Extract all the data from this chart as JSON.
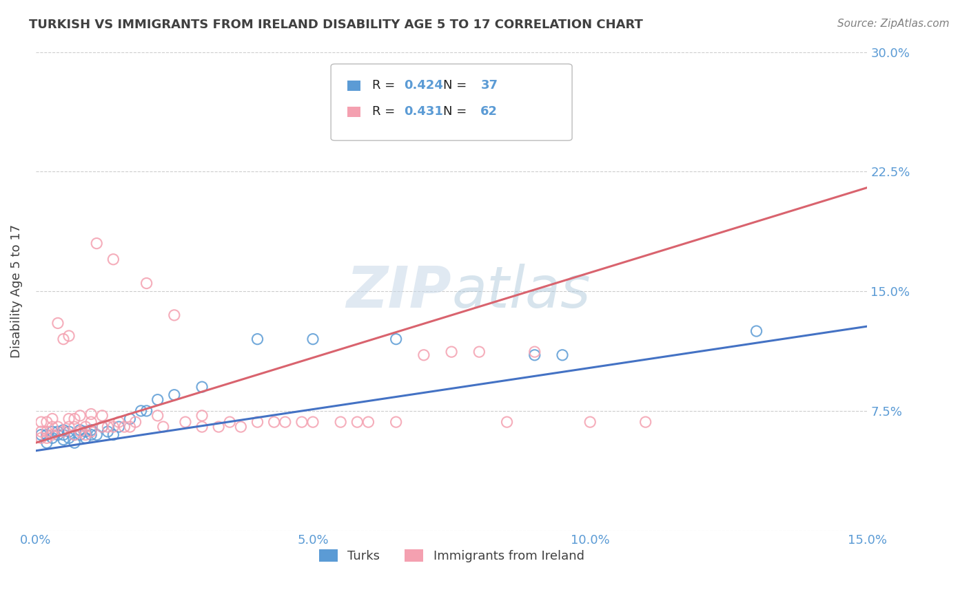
{
  "title": "TURKISH VS IMMIGRANTS FROM IRELAND DISABILITY AGE 5 TO 17 CORRELATION CHART",
  "source": "Source: ZipAtlas.com",
  "ylabel": "Disability Age 5 to 17",
  "x_min": 0.0,
  "x_max": 0.15,
  "y_min": 0.0,
  "y_max": 0.3,
  "x_ticks": [
    0.0,
    0.05,
    0.1,
    0.15
  ],
  "x_tick_labels": [
    "0.0%",
    "5.0%",
    "10.0%",
    "15.0%"
  ],
  "y_ticks": [
    0.0,
    0.075,
    0.15,
    0.225,
    0.3
  ],
  "y_tick_labels": [
    "",
    "7.5%",
    "15.0%",
    "22.5%",
    "30.0%"
  ],
  "blue_color": "#5b9bd5",
  "pink_color": "#f4a0b0",
  "blue_line_color": "#4472c4",
  "pink_line_color": "#d9636e",
  "R_blue": 0.424,
  "N_blue": 37,
  "R_pink": 0.431,
  "N_pink": 62,
  "legend_label_blue": "Turks",
  "legend_label_pink": "Immigrants from Ireland",
  "watermark_zip": "ZIP",
  "watermark_atlas": "atlas",
  "blue_trend_x": [
    0.0,
    0.15
  ],
  "blue_trend_y": [
    0.05,
    0.128
  ],
  "pink_trend_x": [
    0.0,
    0.15
  ],
  "pink_trend_y": [
    0.055,
    0.215
  ],
  "grid_color": "#cccccc",
  "background_color": "#ffffff",
  "title_color": "#404040",
  "axis_label_color": "#404040",
  "tick_label_color": "#5b9bd5",
  "source_color": "#808080",
  "blue_x": [
    0.001,
    0.002,
    0.002,
    0.003,
    0.003,
    0.004,
    0.004,
    0.005,
    0.005,
    0.005,
    0.006,
    0.006,
    0.007,
    0.007,
    0.008,
    0.008,
    0.009,
    0.009,
    0.01,
    0.01,
    0.011,
    0.012,
    0.013,
    0.014,
    0.015,
    0.017,
    0.019,
    0.02,
    0.022,
    0.025,
    0.03,
    0.04,
    0.05,
    0.065,
    0.09,
    0.095,
    0.13
  ],
  "blue_y": [
    0.06,
    0.055,
    0.06,
    0.058,
    0.062,
    0.06,
    0.062,
    0.057,
    0.06,
    0.063,
    0.058,
    0.062,
    0.055,
    0.06,
    0.06,
    0.063,
    0.058,
    0.062,
    0.06,
    0.063,
    0.06,
    0.065,
    0.062,
    0.06,
    0.065,
    0.07,
    0.075,
    0.075,
    0.082,
    0.085,
    0.09,
    0.12,
    0.12,
    0.12,
    0.11,
    0.11,
    0.125
  ],
  "pink_x": [
    0.001,
    0.001,
    0.001,
    0.002,
    0.002,
    0.002,
    0.003,
    0.003,
    0.003,
    0.004,
    0.004,
    0.005,
    0.005,
    0.006,
    0.006,
    0.006,
    0.007,
    0.007,
    0.007,
    0.008,
    0.008,
    0.009,
    0.009,
    0.01,
    0.01,
    0.01,
    0.011,
    0.012,
    0.012,
    0.013,
    0.014,
    0.014,
    0.015,
    0.016,
    0.017,
    0.018,
    0.02,
    0.022,
    0.023,
    0.025,
    0.027,
    0.03,
    0.03,
    0.033,
    0.035,
    0.037,
    0.04,
    0.043,
    0.045,
    0.048,
    0.05,
    0.055,
    0.058,
    0.06,
    0.065,
    0.07,
    0.075,
    0.08,
    0.085,
    0.09,
    0.1,
    0.11
  ],
  "pink_y": [
    0.058,
    0.062,
    0.068,
    0.058,
    0.062,
    0.068,
    0.06,
    0.065,
    0.07,
    0.065,
    0.13,
    0.062,
    0.12,
    0.065,
    0.07,
    0.122,
    0.06,
    0.065,
    0.07,
    0.062,
    0.072,
    0.06,
    0.065,
    0.062,
    0.068,
    0.073,
    0.18,
    0.065,
    0.072,
    0.065,
    0.065,
    0.17,
    0.068,
    0.065,
    0.065,
    0.068,
    0.155,
    0.072,
    0.065,
    0.135,
    0.068,
    0.065,
    0.072,
    0.065,
    0.068,
    0.065,
    0.068,
    0.068,
    0.068,
    0.068,
    0.068,
    0.068,
    0.068,
    0.068,
    0.068,
    0.11,
    0.112,
    0.112,
    0.068,
    0.112,
    0.068,
    0.068
  ]
}
